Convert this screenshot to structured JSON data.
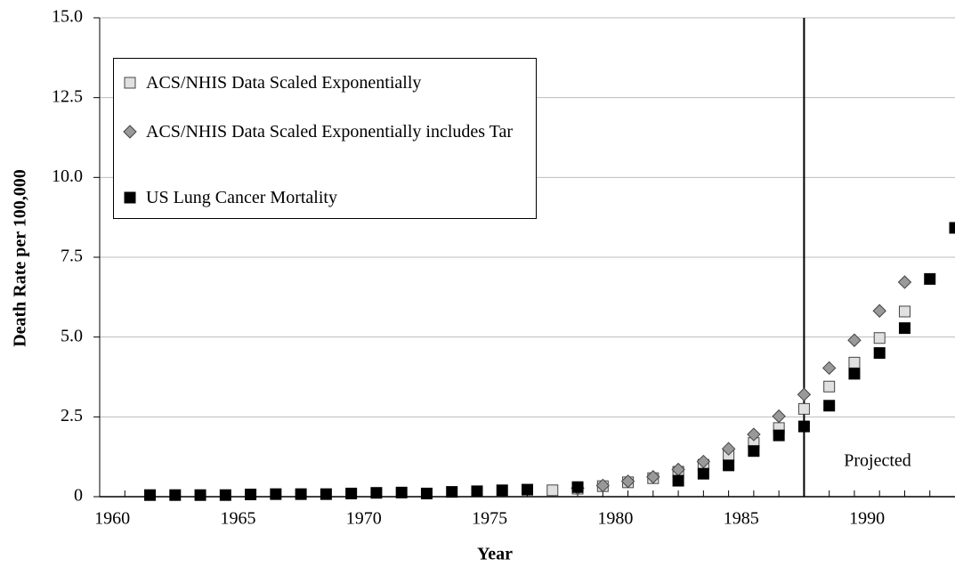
{
  "chart_data": {
    "type": "scatter",
    "xlabel": "Year",
    "ylabel": "Death Rate per 100,000",
    "xlim": [
      1959.5,
      1993.5
    ],
    "xticks": [
      1960,
      1965,
      1970,
      1975,
      1980,
      1985,
      1990
    ],
    "ylim": [
      0,
      15
    ],
    "yticks": [
      0,
      2.5,
      {
        "value": 5,
        "label": "5.0"
      },
      7.5,
      {
        "value": 10,
        "label": "10.0"
      },
      12.5,
      {
        "value": 15,
        "label": "15.0"
      }
    ],
    "grid": true,
    "projection_start": 1987.5,
    "annotation": "Projected",
    "series": [
      {
        "name": "ACS/NHIS Data Scaled Exponentially",
        "marker": "square",
        "color": "#e0e0e0",
        "x": [
          1977.5,
          1978.5,
          1979.5,
          1980.5,
          1981.5,
          1982.5,
          1983.5,
          1984.5,
          1985.5,
          1986.5,
          1987.5,
          1988.5,
          1989.5,
          1990.5,
          1991.5
        ],
        "values": [
          0.2,
          0.25,
          0.33,
          0.45,
          0.58,
          0.78,
          1.0,
          1.3,
          1.68,
          2.15,
          2.75,
          3.45,
          4.2,
          4.97,
          5.8
        ]
      },
      {
        "name": "ACS/NHIS Data Scaled Exponentially includes Tar",
        "marker": "diamond",
        "color": "#999999",
        "x": [
          1978.5,
          1979.5,
          1980.5,
          1981.5,
          1982.5,
          1983.5,
          1984.5,
          1985.5,
          1986.5,
          1987.5,
          1988.5,
          1989.5,
          1990.5,
          1991.5
        ],
        "values": [
          0.27,
          0.35,
          0.48,
          0.62,
          0.85,
          1.1,
          1.5,
          1.95,
          2.52,
          3.2,
          4.03,
          4.9,
          5.82,
          6.72
        ]
      },
      {
        "name": "US Lung Cancer Mortality",
        "marker": "square",
        "color": "#000000",
        "x": [
          1961.5,
          1962.5,
          1963.5,
          1964.5,
          1965.5,
          1966.5,
          1967.5,
          1968.5,
          1969.5,
          1970.5,
          1971.5,
          1972.5,
          1973.5,
          1974.5,
          1975.5,
          1976.5,
          1978.5,
          1982.5,
          1983.5,
          1984.5,
          1985.5,
          1986.5,
          1987.5,
          1988.5,
          1989.5,
          1990.5,
          1991.5,
          1992.5,
          1993.5
        ],
        "values": [
          0.05,
          0.05,
          0.05,
          0.05,
          0.07,
          0.08,
          0.08,
          0.08,
          0.1,
          0.12,
          0.13,
          0.1,
          0.15,
          0.17,
          0.2,
          0.22,
          0.3,
          0.5,
          0.72,
          0.98,
          1.43,
          1.92,
          2.2,
          2.85,
          3.85,
          4.5,
          5.28,
          6.82,
          8.42
        ]
      }
    ]
  }
}
